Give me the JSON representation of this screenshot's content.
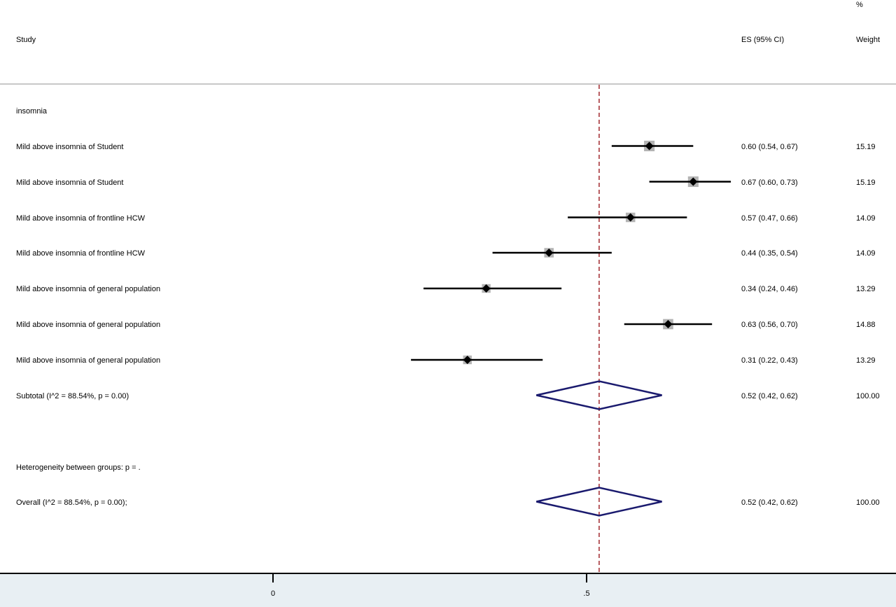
{
  "header": {
    "study_label": "Study",
    "es_label": "ES (95% CI)",
    "weight_label_top": "%",
    "weight_label_bottom": "Weight"
  },
  "groups": [
    {
      "label": "insomnia"
    }
  ],
  "rows": [
    {
      "study": "Mild above insomnia of Student",
      "es_text": "0.60 (0.54, 0.67)",
      "weight": "15.19"
    },
    {
      "study": "Mild above insomnia of Student",
      "es_text": "0.67 (0.60, 0.73)",
      "weight": "15.19"
    },
    {
      "study": "Mild above insomnia of frontline HCW",
      "es_text": "0.57 (0.47, 0.66)",
      "weight": "14.09"
    },
    {
      "study": "Mild above insomnia of frontline HCW",
      "es_text": "0.44 (0.35, 0.54)",
      "weight": "14.09"
    },
    {
      "study": "Mild above insomnia of general population",
      "es_text": "0.34 (0.24, 0.46)",
      "weight": "13.29"
    },
    {
      "study": "Mild above insomnia of general population",
      "es_text": "0.63 (0.56, 0.70)",
      "weight": "14.88"
    },
    {
      "study": "Mild above insomnia of general population",
      "es_text": "0.31 (0.22, 0.43)",
      "weight": "13.29"
    }
  ],
  "subtotal": {
    "label": "Subtotal  (I^2 = 88.54%, p = 0.00)",
    "es_text": "0.52 (0.42, 0.62)",
    "weight": "100.00"
  },
  "heterogeneity": {
    "label": "Heterogeneity between groups: p = ."
  },
  "overall": {
    "label": "Overall  (I^2 = 88.54%, p = 0.00);",
    "es_text": "0.52 (0.42, 0.62)",
    "weight": "100.00"
  },
  "axis": {
    "ticks": [
      "0",
      ".5"
    ]
  },
  "colors": {
    "ci_line": "#000000",
    "marker": "#000000",
    "weight_box": "#b4b4b4",
    "diamond": "#1a1a6e",
    "reference_line": "#a0282c",
    "axis_panel": "#e8eff3"
  },
  "chart_data": {
    "type": "forest",
    "xlim": [
      0,
      0.75
    ],
    "x_ticks": [
      0,
      0.5
    ],
    "x_tick_labels": [
      "0",
      ".5"
    ],
    "reference_line": 0.52,
    "studies": [
      {
        "es": 0.6,
        "lo": 0.54,
        "hi": 0.67,
        "weight": 15.19
      },
      {
        "es": 0.67,
        "lo": 0.6,
        "hi": 0.73,
        "weight": 15.19
      },
      {
        "es": 0.57,
        "lo": 0.47,
        "hi": 0.66,
        "weight": 14.09
      },
      {
        "es": 0.44,
        "lo": 0.35,
        "hi": 0.54,
        "weight": 14.09
      },
      {
        "es": 0.34,
        "lo": 0.24,
        "hi": 0.46,
        "weight": 13.29
      },
      {
        "es": 0.63,
        "lo": 0.56,
        "hi": 0.7,
        "weight": 14.88
      },
      {
        "es": 0.31,
        "lo": 0.22,
        "hi": 0.43,
        "weight": 13.29
      }
    ],
    "subtotal": {
      "es": 0.52,
      "lo": 0.42,
      "hi": 0.62,
      "weight": 100.0
    },
    "overall": {
      "es": 0.52,
      "lo": 0.42,
      "hi": 0.62,
      "weight": 100.0
    }
  }
}
